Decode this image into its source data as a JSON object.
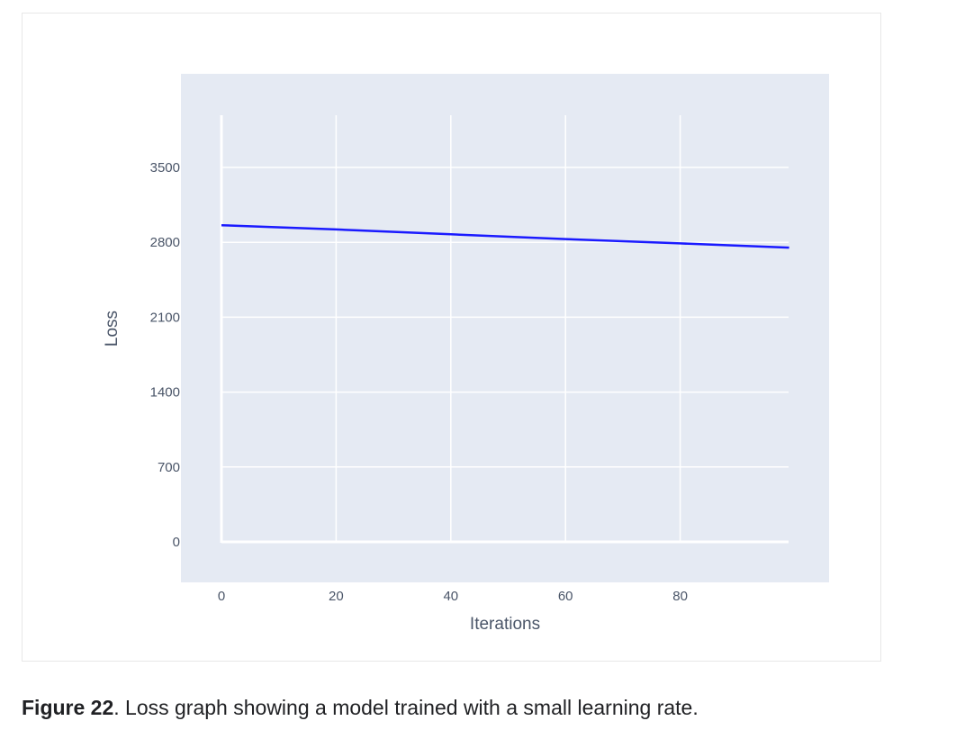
{
  "chart_data": {
    "type": "line",
    "xlabel": "Iterations",
    "ylabel": "Loss",
    "xlim": [
      0,
      99
    ],
    "ylim": [
      0,
      3800
    ],
    "x_ticks": [
      0,
      20,
      40,
      60,
      80
    ],
    "y_ticks": [
      0,
      700,
      1400,
      2100,
      2800,
      3500
    ],
    "grid": true,
    "series": [
      {
        "x": [
          0,
          20,
          40,
          60,
          80,
          99
        ],
        "y": [
          2960,
          2920,
          2875,
          2830,
          2790,
          2750
        ]
      }
    ],
    "colors": {
      "plot_bg": "#e5eaf3",
      "grid": "#ffffff",
      "line": "#1a1aff"
    }
  },
  "caption": {
    "label": "Figure 22",
    "text": ". Loss graph showing a model trained with a small learning rate."
  }
}
